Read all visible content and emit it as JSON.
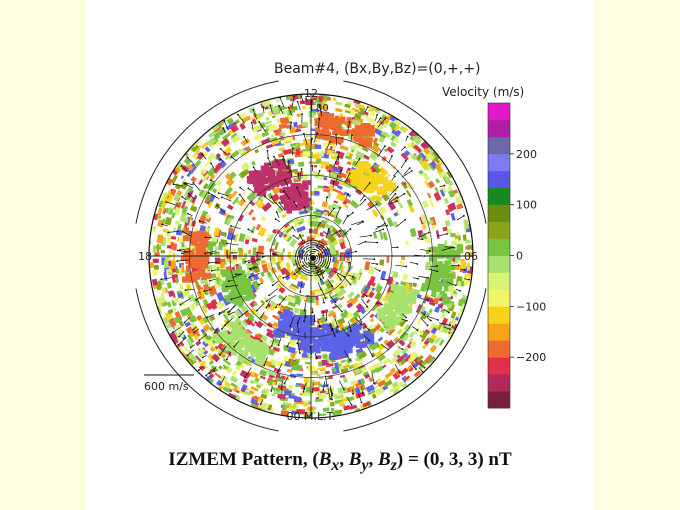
{
  "figure": {
    "title": "Beam#4,  (Bx,By,Bz)=(0,+,+)",
    "mlt_labels": {
      "top": "12",
      "left": "18",
      "right": "06",
      "bottom": "00 M.L.T."
    },
    "latitude_label": "80",
    "scale_vector_label": "600 m/s",
    "colorbar": {
      "title": "Velocity  (m/s)",
      "ticks": [
        "200",
        "100",
        "0",
        "−100",
        "−200"
      ],
      "tick_values": [
        200,
        100,
        0,
        -100,
        -200
      ],
      "range": [
        -300,
        300
      ],
      "colors": [
        "#7a1f3a",
        "#b02a5a",
        "#e0304a",
        "#ee6a30",
        "#f6a21a",
        "#f6d31a",
        "#f2f46a",
        "#d8f278",
        "#a8e26e",
        "#78c440",
        "#8aa41a",
        "#6a8e12",
        "#168a1e",
        "#5858e6",
        "#7c7cf0",
        "#6a6aa8",
        "#b01ea8",
        "#e01ac8"
      ]
    },
    "patches": [
      {
        "color": "#5b63e8",
        "mlt": 23.6,
        "colat": 0.52
      },
      {
        "color": "#5b63e8",
        "mlt": 22.4,
        "colat": 0.58
      },
      {
        "color": "#5b63e8",
        "mlt": 0.8,
        "colat": 0.45
      },
      {
        "color": "#c0306a",
        "mlt": 11.0,
        "colat": 0.38
      },
      {
        "color": "#c0306a",
        "mlt": 10.2,
        "colat": 0.55
      },
      {
        "color": "#f6d31a",
        "mlt": 14.6,
        "colat": 0.6
      },
      {
        "color": "#ee6a30",
        "mlt": 13.0,
        "colat": 0.8
      },
      {
        "color": "#ee6a30",
        "mlt": 6.0,
        "colat": 0.72
      },
      {
        "color": "#a8e26e",
        "mlt": 20.0,
        "colat": 0.62
      },
      {
        "color": "#a8e26e",
        "mlt": 2.5,
        "colat": 0.7
      },
      {
        "color": "#78c440",
        "mlt": 4.5,
        "colat": 0.5
      },
      {
        "color": "#78c440",
        "mlt": 18.5,
        "colat": 0.82
      }
    ]
  },
  "caption": {
    "prefix": "IZMEM Pattern, (",
    "bx_base": "B",
    "bx_sub": "x",
    "sep1": ", ",
    "by_base": "B",
    "by_sub": "y",
    "sep2": ", ",
    "bz_base": "B",
    "bz_sub": "z",
    "suffix": ") = (0, 3, 3) nT"
  }
}
